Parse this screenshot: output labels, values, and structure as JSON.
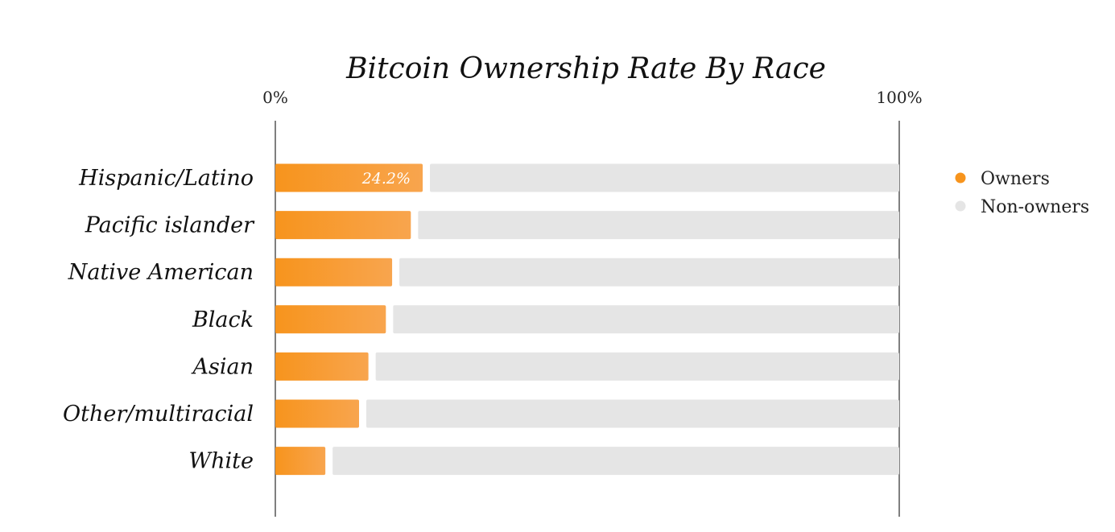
{
  "chart_data": {
    "type": "bar",
    "orientation": "horizontal",
    "stacked": true,
    "title": "Bitcoin Ownership Rate By Race",
    "xlabel": "",
    "ylabel": "",
    "xlim": [
      0,
      100
    ],
    "x_tick_labels": [
      "0%",
      "100%"
    ],
    "categories": [
      "Hispanic/Latino",
      "Pacific islander",
      "Native American",
      "Black",
      "Asian",
      "Other/multiracial",
      "White"
    ],
    "series": [
      {
        "name": "Owners",
        "color": "#F7941D",
        "values": [
          24.2,
          22.3,
          19.3,
          18.3,
          15.5,
          14.0,
          8.6
        ]
      },
      {
        "name": "Non-owners",
        "color": "#E5E5E5",
        "values": [
          75.8,
          77.7,
          80.7,
          81.7,
          84.5,
          86.0,
          91.4
        ]
      }
    ],
    "data_labels": [
      {
        "category": "Hispanic/Latino",
        "text": "24.2%"
      }
    ],
    "grid": false,
    "legend_position": "right"
  }
}
